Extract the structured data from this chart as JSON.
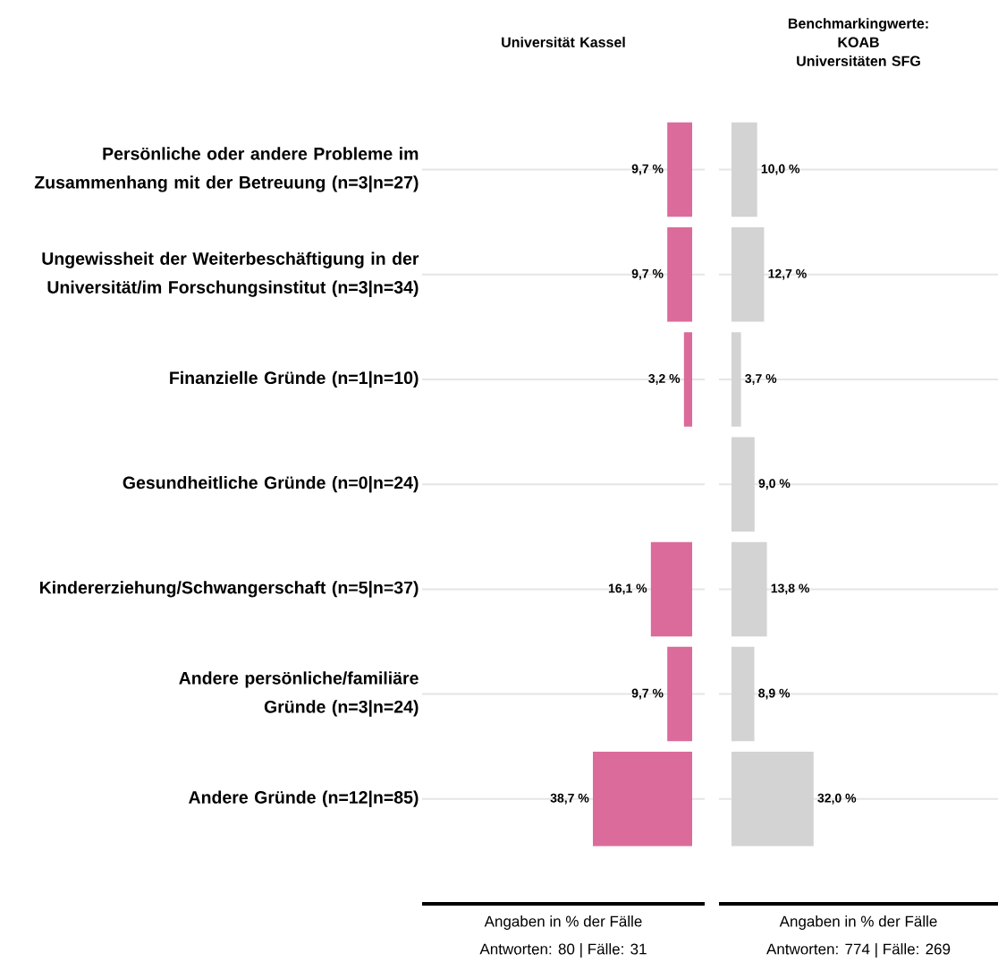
{
  "chart_data": [
    {
      "type": "bar",
      "orientation": "horizontal",
      "title": "Universität Kassel",
      "categories": [
        "Persönliche oder andere Probleme im Zusammenhang mit der Betreuung (n=3|n=27)",
        "Ungewissheit der Weiterbeschäftigung in der Universität/im Forschungsinstitut (n=3|n=34)",
        "Finanzielle Gründe (n=1|n=10)",
        "Gesundheitliche Gründe (n=0|n=24)",
        "Kindererziehung/Schwangerschaft (n=5|n=37)",
        "Andere persönliche/familiäre Gründe (n=3|n=24)",
        "Andere Gründe (n=12|n=85)"
      ],
      "values": [
        9.7,
        9.7,
        3.2,
        null,
        16.1,
        9.7,
        38.7
      ],
      "value_labels": [
        "9,7 %",
        "9,7 %",
        "3,2 %",
        null,
        "16,1 %",
        "9,7 %",
        "38,7 %"
      ],
      "color": "#db6b9b",
      "grid": "y",
      "tick_labels": "y",
      "xlabel": "Angaben in % der Fälle",
      "annotations": [
        "Antworten: 80 | Fälle: 31"
      ]
    },
    {
      "type": "bar",
      "orientation": "horizontal",
      "title": "Benchmarkingwerte: KOAB Universitäten SFG",
      "categories": [
        null,
        null,
        null,
        null,
        null,
        null,
        null
      ],
      "values": [
        10.0,
        12.7,
        3.7,
        9.0,
        13.8,
        8.9,
        32.0
      ],
      "value_labels": [
        "10,0 %",
        "12,7 %",
        "3,7 %",
        "9,0 %",
        "13,8 %",
        "8,9 %",
        "32,0 %"
      ],
      "color": "#d3d3d3",
      "grid": "y",
      "tick_labels": false,
      "xlabel": "Angaben in % der Fälle",
      "annotations": [
        "Antworten: 774 | Fälle: 269"
      ]
    }
  ]
}
